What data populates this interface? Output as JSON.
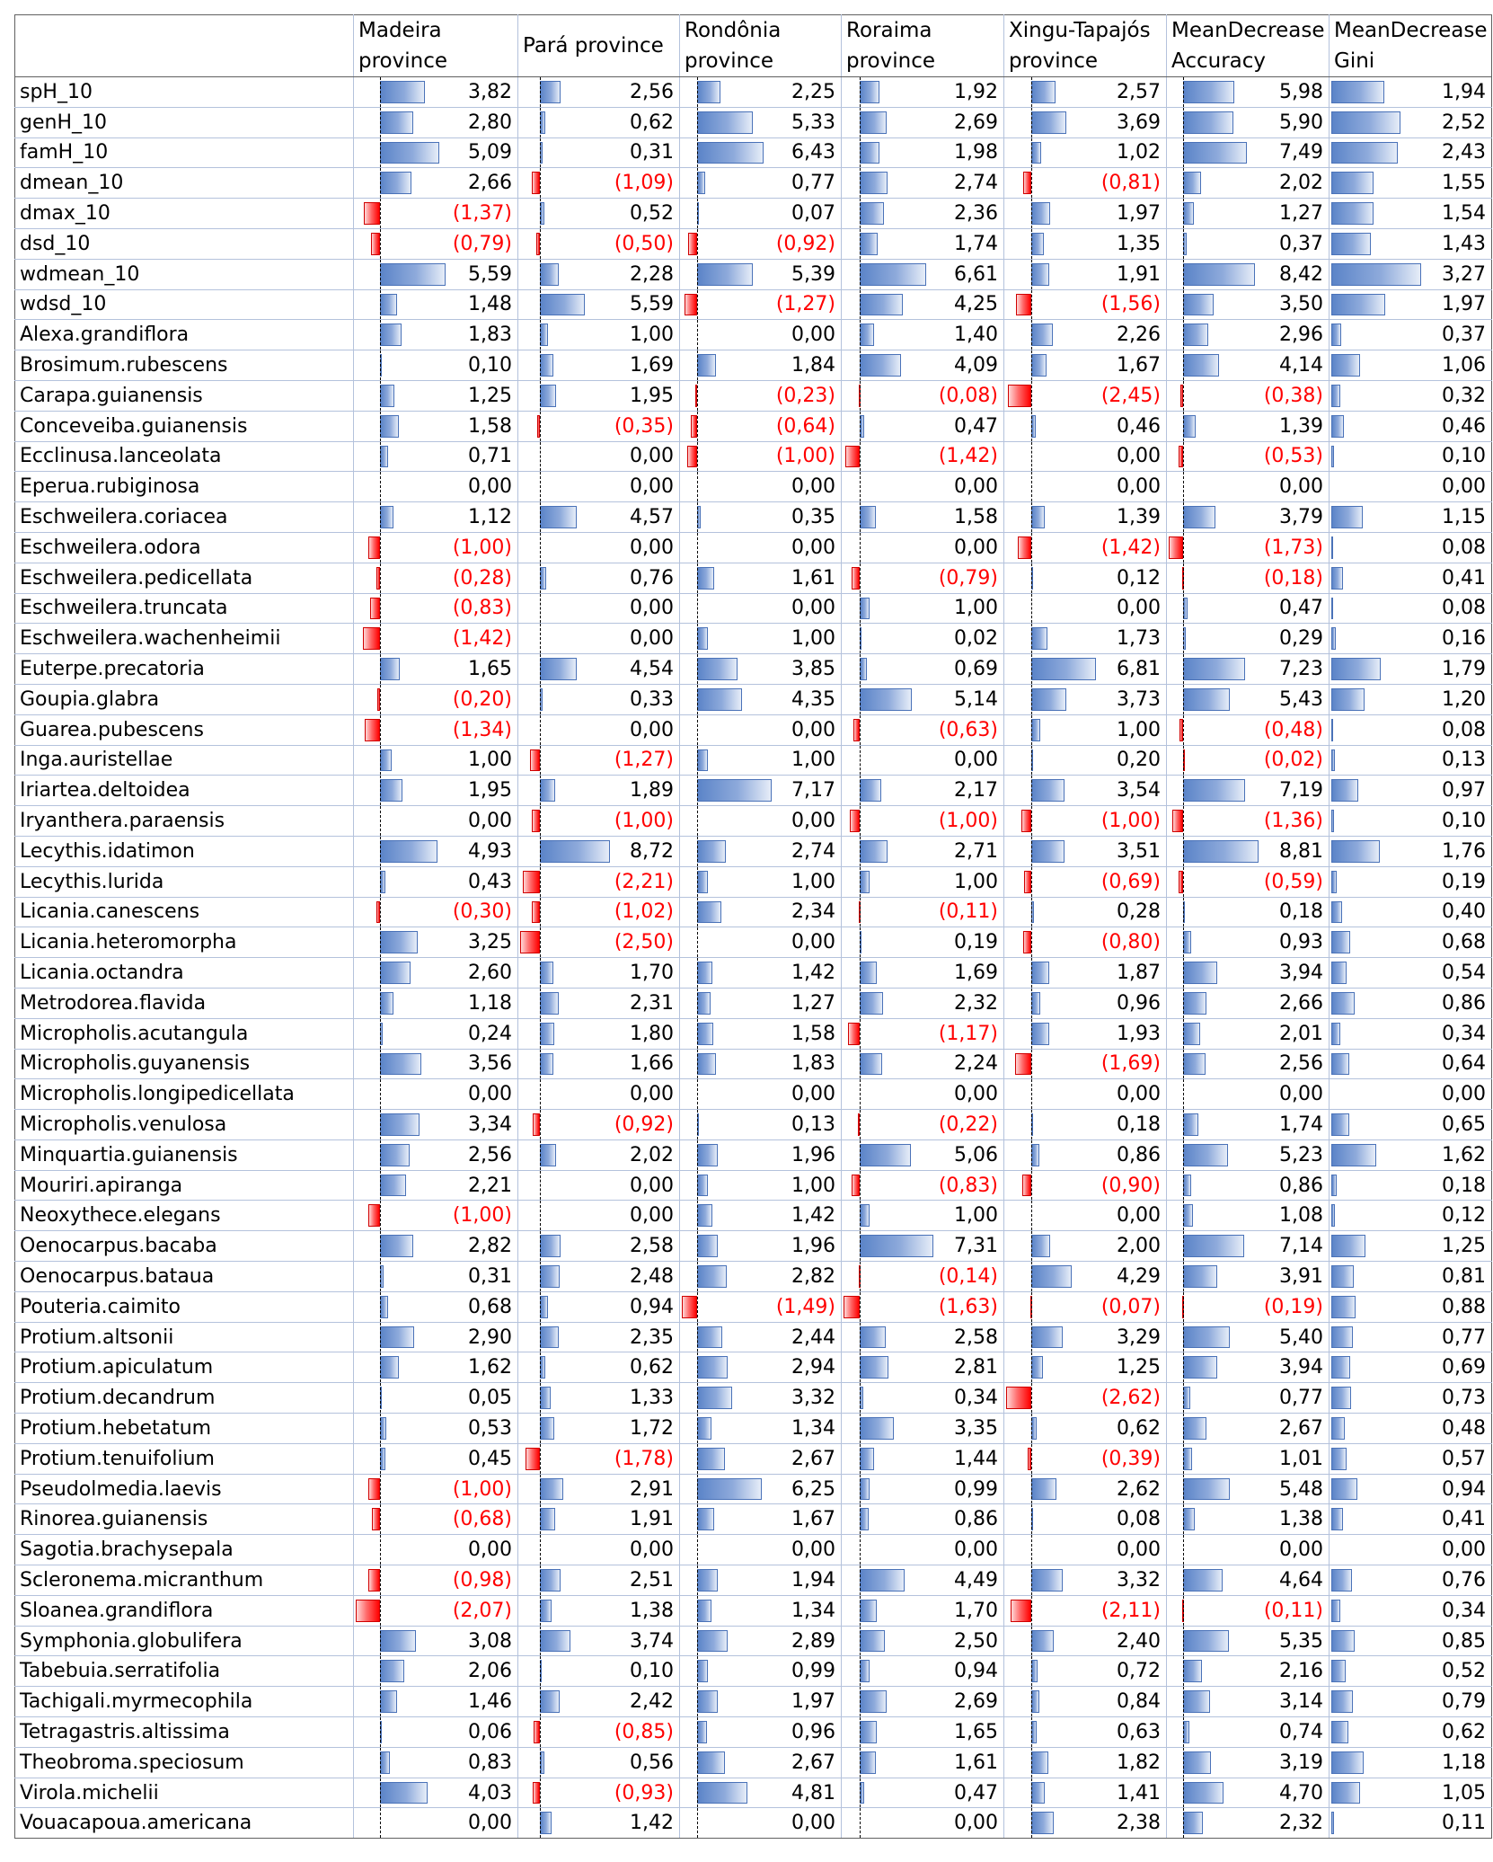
{
  "columns": [
    {
      "line1": "Madeira",
      "line2": "province"
    },
    {
      "line1": "Pará province",
      "line2": ""
    },
    {
      "line1": "Rondônia",
      "line2": "province"
    },
    {
      "line1": "Roraima",
      "line2": "province"
    },
    {
      "line1": "Xingu-Tapajós",
      "line2": "province"
    },
    {
      "line1": "MeanDecrease",
      "line2": "Accuracy"
    },
    {
      "line1": "MeanDecrease",
      "line2": "Gini"
    }
  ],
  "rows": [
    {
      "name": "spH_10",
      "values": [
        "3,82",
        "2,56",
        "2,25",
        "1,92",
        "2,57",
        "5,98",
        "1,94"
      ]
    },
    {
      "name": "genH_10",
      "values": [
        "2,80",
        "0,62",
        "5,33",
        "2,69",
        "3,69",
        "5,90",
        "2,52"
      ]
    },
    {
      "name": "famH_10",
      "values": [
        "5,09",
        "0,31",
        "6,43",
        "1,98",
        "1,02",
        "7,49",
        "2,43"
      ]
    },
    {
      "name": "dmean_10",
      "values": [
        "2,66",
        "(1,09)",
        "0,77",
        "2,74",
        "(0,81)",
        "2,02",
        "1,55"
      ]
    },
    {
      "name": "dmax_10",
      "values": [
        "(1,37)",
        "0,52",
        "0,07",
        "2,36",
        "1,97",
        "1,27",
        "1,54"
      ]
    },
    {
      "name": "dsd_10",
      "values": [
        "(0,79)",
        "(0,50)",
        "(0,92)",
        "1,74",
        "1,35",
        "0,37",
        "1,43"
      ]
    },
    {
      "name": "wdmean_10",
      "values": [
        "5,59",
        "2,28",
        "5,39",
        "6,61",
        "1,91",
        "8,42",
        "3,27"
      ]
    },
    {
      "name": "wdsd_10",
      "values": [
        "1,48",
        "5,59",
        "(1,27)",
        "4,25",
        "(1,56)",
        "3,50",
        "1,97"
      ]
    },
    {
      "name": "Alexa.grandiflora",
      "values": [
        "1,83",
        "1,00",
        "0,00",
        "1,40",
        "2,26",
        "2,96",
        "0,37"
      ]
    },
    {
      "name": "Brosimum.rubescens",
      "values": [
        "0,10",
        "1,69",
        "1,84",
        "4,09",
        "1,67",
        "4,14",
        "1,06"
      ]
    },
    {
      "name": "Carapa.guianensis",
      "values": [
        "1,25",
        "1,95",
        "(0,23)",
        "(0,08)",
        "(2,45)",
        "(0,38)",
        "0,32"
      ]
    },
    {
      "name": "Conceveiba.guianensis",
      "values": [
        "1,58",
        "(0,35)",
        "(0,64)",
        "0,47",
        "0,46",
        "1,39",
        "0,46"
      ]
    },
    {
      "name": "Ecclinusa.lanceolata",
      "values": [
        "0,71",
        "0,00",
        "(1,00)",
        "(1,42)",
        "0,00",
        "(0,53)",
        "0,10"
      ]
    },
    {
      "name": "Eperua.rubiginosa",
      "values": [
        "0,00",
        "0,00",
        "0,00",
        "0,00",
        "0,00",
        "0,00",
        "0,00"
      ]
    },
    {
      "name": "Eschweilera.coriacea",
      "values": [
        "1,12",
        "4,57",
        "0,35",
        "1,58",
        "1,39",
        "3,79",
        "1,15"
      ]
    },
    {
      "name": "Eschweilera.odora",
      "values": [
        "(1,00)",
        "0,00",
        "0,00",
        "0,00",
        "(1,42)",
        "(1,73)",
        "0,08"
      ]
    },
    {
      "name": "Eschweilera.pedicellata",
      "values": [
        "(0,28)",
        "0,76",
        "1,61",
        "(0,79)",
        "0,12",
        "(0,18)",
        "0,41"
      ]
    },
    {
      "name": "Eschweilera.truncata",
      "values": [
        "(0,83)",
        "0,00",
        "0,00",
        "1,00",
        "0,00",
        "0,47",
        "0,08"
      ]
    },
    {
      "name": "Eschweilera.wachenheimii",
      "values": [
        "(1,42)",
        "0,00",
        "1,00",
        "0,02",
        "1,73",
        "0,29",
        "0,16"
      ]
    },
    {
      "name": "Euterpe.precatoria",
      "values": [
        "1,65",
        "4,54",
        "3,85",
        "0,69",
        "6,81",
        "7,23",
        "1,79"
      ]
    },
    {
      "name": "Goupia.glabra",
      "values": [
        "(0,20)",
        "0,33",
        "4,35",
        "5,14",
        "3,73",
        "5,43",
        "1,20"
      ]
    },
    {
      "name": "Guarea.pubescens",
      "values": [
        "(1,34)",
        "0,00",
        "0,00",
        "(0,63)",
        "1,00",
        "(0,48)",
        "0,08"
      ]
    },
    {
      "name": "Inga.auristellae",
      "values": [
        "1,00",
        "(1,27)",
        "1,00",
        "0,00",
        "0,20",
        "(0,02)",
        "0,13"
      ]
    },
    {
      "name": "Iriartea.deltoidea",
      "values": [
        "1,95",
        "1,89",
        "7,17",
        "2,17",
        "3,54",
        "7,19",
        "0,97"
      ]
    },
    {
      "name": "Iryanthera.paraensis",
      "values": [
        "0,00",
        "(1,00)",
        "0,00",
        "(1,00)",
        "(1,00)",
        "(1,36)",
        "0,10"
      ]
    },
    {
      "name": "Lecythis.idatimon",
      "values": [
        "4,93",
        "8,72",
        "2,74",
        "2,71",
        "3,51",
        "8,81",
        "1,76"
      ]
    },
    {
      "name": "Lecythis.lurida",
      "values": [
        "0,43",
        "(2,21)",
        "1,00",
        "1,00",
        "(0,69)",
        "(0,59)",
        "0,19"
      ]
    },
    {
      "name": "Licania.canescens",
      "values": [
        "(0,30)",
        "(1,02)",
        "2,34",
        "(0,11)",
        "0,28",
        "0,18",
        "0,40"
      ]
    },
    {
      "name": "Licania.heteromorpha",
      "values": [
        "3,25",
        "(2,50)",
        "0,00",
        "0,19",
        "(0,80)",
        "0,93",
        "0,68"
      ]
    },
    {
      "name": "Licania.octandra",
      "values": [
        "2,60",
        "1,70",
        "1,42",
        "1,69",
        "1,87",
        "3,94",
        "0,54"
      ]
    },
    {
      "name": "Metrodorea.flavida",
      "values": [
        "1,18",
        "2,31",
        "1,27",
        "2,32",
        "0,96",
        "2,66",
        "0,86"
      ]
    },
    {
      "name": "Micropholis.acutangula",
      "values": [
        "0,24",
        "1,80",
        "1,58",
        "(1,17)",
        "1,93",
        "2,01",
        "0,34"
      ]
    },
    {
      "name": "Micropholis.guyanensis",
      "values": [
        "3,56",
        "1,66",
        "1,83",
        "2,24",
        "(1,69)",
        "2,56",
        "0,64"
      ]
    },
    {
      "name": "Micropholis.longipedicellata",
      "values": [
        "0,00",
        "0,00",
        "0,00",
        "0,00",
        "0,00",
        "0,00",
        "0,00"
      ]
    },
    {
      "name": "Micropholis.venulosa",
      "values": [
        "3,34",
        "(0,92)",
        "0,13",
        "(0,22)",
        "0,18",
        "1,74",
        "0,65"
      ]
    },
    {
      "name": "Minquartia.guianensis",
      "values": [
        "2,56",
        "2,02",
        "1,96",
        "5,06",
        "0,86",
        "5,23",
        "1,62"
      ]
    },
    {
      "name": "Mouriri.apiranga",
      "values": [
        "2,21",
        "0,00",
        "1,00",
        "(0,83)",
        "(0,90)",
        "0,86",
        "0,18"
      ]
    },
    {
      "name": "Neoxythece.elegans",
      "values": [
        "(1,00)",
        "0,00",
        "1,42",
        "1,00",
        "0,00",
        "1,08",
        "0,12"
      ]
    },
    {
      "name": "Oenocarpus.bacaba",
      "values": [
        "2,82",
        "2,58",
        "1,96",
        "7,31",
        "2,00",
        "7,14",
        "1,25"
      ]
    },
    {
      "name": "Oenocarpus.bataua",
      "values": [
        "0,31",
        "2,48",
        "2,82",
        "(0,14)",
        "4,29",
        "3,91",
        "0,81"
      ]
    },
    {
      "name": "Pouteria.caimito",
      "values": [
        "0,68",
        "0,94",
        "(1,49)",
        "(1,63)",
        "(0,07)",
        "(0,19)",
        "0,88"
      ]
    },
    {
      "name": "Protium.altsonii",
      "values": [
        "2,90",
        "2,35",
        "2,44",
        "2,58",
        "3,29",
        "5,40",
        "0,77"
      ]
    },
    {
      "name": "Protium.apiculatum",
      "values": [
        "1,62",
        "0,62",
        "2,94",
        "2,81",
        "1,25",
        "3,94",
        "0,69"
      ]
    },
    {
      "name": "Protium.decandrum",
      "values": [
        "0,05",
        "1,33",
        "3,32",
        "0,34",
        "(2,62)",
        "0,77",
        "0,73"
      ]
    },
    {
      "name": "Protium.hebetatum",
      "values": [
        "0,53",
        "1,72",
        "1,34",
        "3,35",
        "0,62",
        "2,67",
        "0,48"
      ]
    },
    {
      "name": "Protium.tenuifolium",
      "values": [
        "0,45",
        "(1,78)",
        "2,67",
        "1,44",
        "(0,39)",
        "1,01",
        "0,57"
      ]
    },
    {
      "name": "Pseudolmedia.laevis",
      "values": [
        "(1,00)",
        "2,91",
        "6,25",
        "0,99",
        "2,62",
        "5,48",
        "0,94"
      ]
    },
    {
      "name": "Rinorea.guianensis",
      "values": [
        "(0,68)",
        "1,91",
        "1,67",
        "0,86",
        "0,08",
        "1,38",
        "0,41"
      ]
    },
    {
      "name": "Sagotia.brachysepala",
      "values": [
        "0,00",
        "0,00",
        "0,00",
        "0,00",
        "0,00",
        "0,00",
        "0,00"
      ]
    },
    {
      "name": "Scleronema.micranthum",
      "values": [
        "(0,98)",
        "2,51",
        "1,94",
        "4,49",
        "3,32",
        "4,64",
        "0,76"
      ]
    },
    {
      "name": "Sloanea.grandiflora",
      "values": [
        "(2,07)",
        "1,38",
        "1,34",
        "1,70",
        "(2,11)",
        "(0,11)",
        "0,34"
      ]
    },
    {
      "name": "Symphonia.globulifera",
      "values": [
        "3,08",
        "3,74",
        "2,89",
        "2,50",
        "2,40",
        "5,35",
        "0,85"
      ]
    },
    {
      "name": "Tabebuia.serratifolia",
      "values": [
        "2,06",
        "0,10",
        "0,99",
        "0,94",
        "0,72",
        "2,16",
        "0,52"
      ]
    },
    {
      "name": "Tachigali.myrmecophila",
      "values": [
        "1,46",
        "2,42",
        "1,97",
        "2,69",
        "0,84",
        "3,14",
        "0,79"
      ]
    },
    {
      "name": "Tetragastris.altissima",
      "values": [
        "0,06",
        "(0,85)",
        "0,96",
        "1,65",
        "0,63",
        "0,74",
        "0,62"
      ]
    },
    {
      "name": "Theobroma.speciosum",
      "values": [
        "0,83",
        "0,56",
        "2,67",
        "1,61",
        "1,82",
        "3,19",
        "1,18"
      ]
    },
    {
      "name": "Virola.michelii",
      "values": [
        "4,03",
        "(0,93)",
        "4,81",
        "0,47",
        "1,41",
        "4,70",
        "1,05"
      ]
    },
    {
      "name": "Vouacapoua.americana",
      "values": [
        "0,00",
        "1,42",
        "0,00",
        "0,00",
        "2,38",
        "2,32",
        "0,11"
      ]
    }
  ],
  "colors": {
    "positive_bar": "#5b84c8",
    "negative_bar": "#ff0000",
    "negative_text": "#ff0000",
    "grid_line": "#b4c2dc"
  }
}
